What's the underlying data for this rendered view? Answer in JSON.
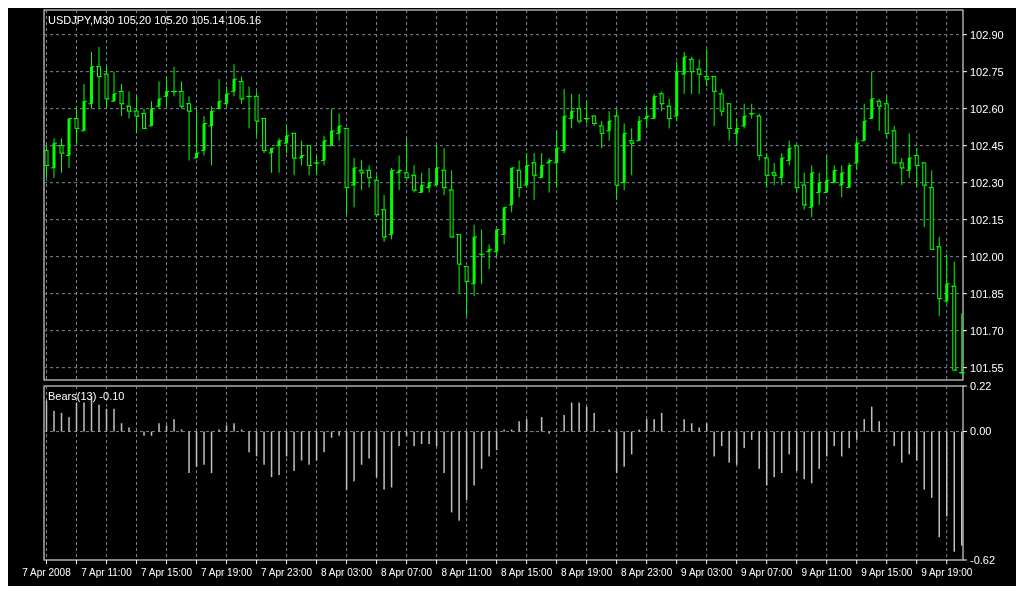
{
  "chart_data": [
    {
      "type": "candlestick",
      "title": "USDJPY,M30  105.20 105.20 105.14 105.16",
      "color": "#00ff00",
      "grid": true,
      "tick_labels": "y",
      "x": [
        "2008-04-07T07:00",
        "2008-04-07T07:30",
        "2008-04-07T08:00",
        "2008-04-07T08:30",
        "2008-04-07T09:00",
        "2008-04-07T09:30",
        "2008-04-07T10:00",
        "2008-04-07T10:30",
        "2008-04-07T11:00",
        "2008-04-07T11:30",
        "2008-04-07T12:00",
        "2008-04-07T12:30",
        "2008-04-07T13:00",
        "2008-04-07T13:30",
        "2008-04-07T14:00",
        "2008-04-07T14:30",
        "2008-04-07T15:00",
        "2008-04-07T15:30",
        "2008-04-07T16:00",
        "2008-04-07T16:30",
        "2008-04-07T17:00",
        "2008-04-07T17:30",
        "2008-04-07T18:00",
        "2008-04-07T18:30",
        "2008-04-07T19:00",
        "2008-04-07T19:30",
        "2008-04-07T20:00",
        "2008-04-07T20:30",
        "2008-04-07T21:00",
        "2008-04-07T21:30",
        "2008-04-07T22:00",
        "2008-04-07T22:30",
        "2008-04-07T23:00",
        "2008-04-07T23:30",
        "2008-04-08T00:00",
        "2008-04-08T00:30",
        "2008-04-08T01:00",
        "2008-04-08T01:30",
        "2008-04-08T02:00",
        "2008-04-08T02:30",
        "2008-04-08T03:00",
        "2008-04-08T03:30",
        "2008-04-08T04:00",
        "2008-04-08T04:30",
        "2008-04-08T05:00",
        "2008-04-08T05:30",
        "2008-04-08T06:00",
        "2008-04-08T06:30",
        "2008-04-08T07:00",
        "2008-04-08T07:30",
        "2008-04-08T08:00",
        "2008-04-08T08:30",
        "2008-04-08T09:00",
        "2008-04-08T09:30",
        "2008-04-08T10:00",
        "2008-04-08T10:30",
        "2008-04-08T11:00",
        "2008-04-08T11:30",
        "2008-04-08T12:00",
        "2008-04-08T12:30",
        "2008-04-08T13:00",
        "2008-04-08T13:30",
        "2008-04-08T14:00",
        "2008-04-08T14:30",
        "2008-04-08T15:00",
        "2008-04-08T15:30",
        "2008-04-08T16:00",
        "2008-04-08T16:30",
        "2008-04-08T17:00",
        "2008-04-08T17:30",
        "2008-04-08T18:00",
        "2008-04-08T18:30",
        "2008-04-08T19:00",
        "2008-04-08T19:30",
        "2008-04-08T20:00",
        "2008-04-08T20:30",
        "2008-04-08T21:00",
        "2008-04-08T21:30",
        "2008-04-08T22:00",
        "2008-04-08T22:30",
        "2008-04-08T23:00",
        "2008-04-08T23:30",
        "2008-04-09T00:00",
        "2008-04-09T00:30",
        "2008-04-09T01:00",
        "2008-04-09T01:30",
        "2008-04-09T02:00",
        "2008-04-09T02:30",
        "2008-04-09T03:00",
        "2008-04-09T03:30",
        "2008-04-09T04:00",
        "2008-04-09T04:30",
        "2008-04-09T05:00",
        "2008-04-09T05:30",
        "2008-04-09T06:00",
        "2008-04-09T06:30",
        "2008-04-09T07:00",
        "2008-04-09T07:30",
        "2008-04-09T08:00",
        "2008-04-09T08:30",
        "2008-04-09T09:00",
        "2008-04-09T09:30",
        "2008-04-09T10:00",
        "2008-04-09T10:30",
        "2008-04-09T11:00",
        "2008-04-09T11:30",
        "2008-04-09T12:00",
        "2008-04-09T12:30",
        "2008-04-09T13:00",
        "2008-04-09T13:30",
        "2008-04-09T14:00",
        "2008-04-09T14:30",
        "2008-04-09T15:00",
        "2008-04-09T15:30",
        "2008-04-09T16:00",
        "2008-04-09T16:30",
        "2008-04-09T17:00",
        "2008-04-09T17:30",
        "2008-04-09T18:00",
        "2008-04-09T18:30",
        "2008-04-09T19:00",
        "2008-04-09T19:30",
        "2008-04-09T20:00"
      ],
      "ohlc": [
        [
          102.43,
          102.45,
          102.32,
          102.37
        ],
        [
          102.36,
          102.48,
          102.32,
          102.46
        ],
        [
          102.45,
          102.48,
          102.34,
          102.42
        ],
        [
          102.41,
          102.56,
          102.36,
          102.56
        ],
        [
          102.56,
          102.61,
          102.46,
          102.52
        ],
        [
          102.51,
          102.7,
          102.51,
          102.63
        ],
        [
          102.62,
          102.83,
          102.6,
          102.77
        ],
        [
          102.77,
          102.85,
          102.6,
          102.73
        ],
        [
          102.74,
          102.77,
          102.6,
          102.64
        ],
        [
          102.63,
          102.75,
          102.63,
          102.66
        ],
        [
          102.67,
          102.7,
          102.57,
          102.62
        ],
        [
          102.61,
          102.67,
          102.56,
          102.59
        ],
        [
          102.59,
          102.65,
          102.5,
          102.57
        ],
        [
          102.58,
          102.6,
          102.52,
          102.52
        ],
        [
          102.53,
          102.63,
          102.53,
          102.6
        ],
        [
          102.61,
          102.71,
          102.6,
          102.64
        ],
        [
          102.65,
          102.73,
          102.61,
          102.67
        ],
        [
          102.67,
          102.77,
          102.65,
          102.67
        ],
        [
          102.67,
          102.71,
          102.6,
          102.61
        ],
        [
          102.62,
          102.65,
          102.39,
          102.59
        ],
        [
          102.4,
          102.6,
          102.4,
          102.42
        ],
        [
          102.43,
          102.57,
          102.41,
          102.54
        ],
        [
          102.53,
          102.61,
          102.37,
          102.59
        ],
        [
          102.6,
          102.72,
          102.6,
          102.63
        ],
        [
          102.62,
          102.69,
          102.61,
          102.66
        ],
        [
          102.67,
          102.78,
          102.65,
          102.72
        ],
        [
          102.71,
          102.73,
          102.62,
          102.64
        ],
        [
          102.65,
          102.69,
          102.52,
          102.65
        ],
        [
          102.65,
          102.67,
          102.49,
          102.55
        ],
        [
          102.56,
          102.56,
          102.42,
          102.43
        ],
        [
          102.42,
          102.44,
          102.34,
          102.44
        ],
        [
          102.45,
          102.48,
          102.34,
          102.47
        ],
        [
          102.46,
          102.53,
          102.42,
          102.49
        ],
        [
          102.5,
          102.5,
          102.33,
          102.4
        ],
        [
          102.4,
          102.47,
          102.37,
          102.41
        ],
        [
          102.45,
          102.45,
          102.33,
          102.37
        ],
        [
          102.38,
          102.41,
          102.33,
          102.38
        ],
        [
          102.39,
          102.49,
          102.37,
          102.47
        ],
        [
          102.45,
          102.6,
          102.45,
          102.51
        ],
        [
          102.5,
          102.58,
          102.47,
          102.53
        ],
        [
          102.52,
          102.52,
          102.17,
          102.28
        ],
        [
          102.29,
          102.4,
          102.2,
          102.36
        ],
        [
          102.35,
          102.39,
          102.27,
          102.34
        ],
        [
          102.35,
          102.37,
          102.28,
          102.32
        ],
        [
          102.31,
          102.33,
          102.16,
          102.17
        ],
        [
          102.19,
          102.25,
          102.06,
          102.08
        ],
        [
          102.09,
          102.36,
          102.07,
          102.35
        ],
        [
          102.34,
          102.41,
          102.27,
          102.35
        ],
        [
          102.34,
          102.48,
          102.32,
          102.32
        ],
        [
          102.33,
          102.37,
          102.26,
          102.27
        ],
        [
          102.26,
          102.34,
          102.26,
          102.29
        ],
        [
          102.28,
          102.36,
          102.26,
          102.3
        ],
        [
          102.29,
          102.45,
          102.29,
          102.36
        ],
        [
          102.35,
          102.44,
          102.25,
          102.28
        ],
        [
          102.27,
          102.35,
          102.08,
          102.08
        ],
        [
          102.09,
          102.09,
          101.85,
          101.97
        ],
        [
          101.96,
          101.96,
          101.76,
          101.9
        ],
        [
          101.89,
          102.13,
          101.84,
          102.08
        ],
        [
          102.01,
          102.11,
          101.89,
          102.01
        ],
        [
          102.02,
          102.05,
          101.95,
          102.03
        ],
        [
          102.02,
          102.11,
          102.0,
          102.11
        ],
        [
          102.09,
          102.2,
          102.05,
          102.2
        ],
        [
          102.21,
          102.36,
          102.18,
          102.36
        ],
        [
          102.35,
          102.39,
          102.24,
          102.28
        ],
        [
          102.29,
          102.42,
          102.28,
          102.37
        ],
        [
          102.38,
          102.42,
          102.23,
          102.33
        ],
        [
          102.32,
          102.42,
          102.32,
          102.37
        ],
        [
          102.38,
          102.4,
          102.26,
          102.39
        ],
        [
          102.38,
          102.51,
          102.28,
          102.44
        ],
        [
          102.43,
          102.68,
          102.42,
          102.57
        ],
        [
          102.56,
          102.66,
          102.52,
          102.59
        ],
        [
          102.6,
          102.66,
          102.54,
          102.55
        ],
        [
          102.56,
          102.63,
          102.54,
          102.56
        ],
        [
          102.57,
          102.57,
          102.53,
          102.54
        ],
        [
          102.53,
          102.55,
          102.44,
          102.5
        ],
        [
          102.51,
          102.59,
          102.47,
          102.55
        ],
        [
          102.57,
          102.6,
          102.23,
          102.29
        ],
        [
          102.3,
          102.54,
          102.27,
          102.5
        ],
        [
          102.47,
          102.52,
          102.33,
          102.46
        ],
        [
          102.47,
          102.57,
          102.47,
          102.55
        ],
        [
          102.56,
          102.61,
          102.52,
          102.57
        ],
        [
          102.56,
          102.66,
          102.56,
          102.65
        ],
        [
          102.66,
          102.67,
          102.59,
          102.62
        ],
        [
          102.61,
          102.64,
          102.52,
          102.56
        ],
        [
          102.57,
          102.79,
          102.55,
          102.75
        ],
        [
          102.74,
          102.83,
          102.66,
          102.81
        ],
        [
          102.8,
          102.81,
          102.66,
          102.75
        ],
        [
          102.76,
          102.8,
          102.66,
          102.74
        ],
        [
          102.73,
          102.84,
          102.69,
          102.72
        ],
        [
          102.73,
          102.73,
          102.53,
          102.67
        ],
        [
          102.66,
          102.68,
          102.57,
          102.59
        ],
        [
          102.62,
          102.62,
          102.47,
          102.52
        ],
        [
          102.5,
          102.56,
          102.45,
          102.52
        ],
        [
          102.53,
          102.62,
          102.52,
          102.57
        ],
        [
          102.58,
          102.62,
          102.56,
          102.58
        ],
        [
          102.57,
          102.58,
          102.39,
          102.41
        ],
        [
          102.4,
          102.42,
          102.28,
          102.33
        ],
        [
          102.34,
          102.38,
          102.29,
          102.33
        ],
        [
          102.32,
          102.42,
          102.29,
          102.4
        ],
        [
          102.39,
          102.47,
          102.37,
          102.44
        ],
        [
          102.45,
          102.45,
          102.26,
          102.28
        ],
        [
          102.29,
          102.34,
          102.19,
          102.21
        ],
        [
          102.2,
          102.37,
          102.16,
          102.34
        ],
        [
          102.26,
          102.34,
          102.21,
          102.3
        ],
        [
          102.26,
          102.41,
          102.26,
          102.31
        ],
        [
          102.3,
          102.37,
          102.3,
          102.35
        ],
        [
          102.29,
          102.37,
          102.24,
          102.34
        ],
        [
          102.28,
          102.38,
          102.28,
          102.37
        ],
        [
          102.38,
          102.48,
          102.35,
          102.46
        ],
        [
          102.47,
          102.62,
          102.47,
          102.55
        ],
        [
          102.56,
          102.75,
          102.56,
          102.64
        ],
        [
          102.63,
          102.64,
          102.51,
          102.61
        ],
        [
          102.62,
          102.65,
          102.48,
          102.5
        ],
        [
          102.51,
          102.53,
          102.38,
          102.38
        ],
        [
          102.38,
          102.4,
          102.29,
          102.36
        ],
        [
          102.35,
          102.5,
          102.32,
          102.4
        ],
        [
          102.41,
          102.44,
          102.28,
          102.37
        ],
        [
          102.38,
          102.38,
          102.12,
          102.29
        ],
        [
          102.28,
          102.35,
          102.03,
          102.03
        ],
        [
          102.04,
          102.08,
          101.76,
          101.83
        ],
        [
          101.82,
          102.01,
          101.81,
          101.89
        ],
        [
          101.88,
          101.98,
          101.54,
          101.54
        ],
        [
          101.53,
          101.77,
          101.53,
          101.53
        ]
      ],
      "xlim": [
        "2008-04-07T06:50",
        "2008-04-09T20:05"
      ],
      "xticks": [
        {
          "value": "2008-04-07T07:00",
          "label": null
        },
        {
          "value": "2008-04-07T09:00",
          "label": null
        },
        {
          "value": "2008-04-07T11:00",
          "label": null
        },
        {
          "value": "2008-04-07T13:00",
          "label": null
        },
        {
          "value": "2008-04-07T15:00",
          "label": null
        },
        {
          "value": "2008-04-07T17:00",
          "label": null
        },
        {
          "value": "2008-04-07T19:00",
          "label": null
        },
        {
          "value": "2008-04-07T21:00",
          "label": null
        },
        {
          "value": "2008-04-07T23:00",
          "label": null
        },
        {
          "value": "2008-04-08T01:00",
          "label": null
        },
        {
          "value": "2008-04-08T03:00",
          "label": null
        },
        {
          "value": "2008-04-08T05:00",
          "label": null
        },
        {
          "value": "2008-04-08T07:00",
          "label": null
        },
        {
          "value": "2008-04-08T09:00",
          "label": null
        },
        {
          "value": "2008-04-08T11:00",
          "label": null
        },
        {
          "value": "2008-04-08T13:00",
          "label": null
        },
        {
          "value": "2008-04-08T15:00",
          "label": null
        },
        {
          "value": "2008-04-08T17:00",
          "label": null
        },
        {
          "value": "2008-04-08T19:00",
          "label": null
        },
        {
          "value": "2008-04-08T21:00",
          "label": null
        },
        {
          "value": "2008-04-08T23:00",
          "label": null
        },
        {
          "value": "2008-04-09T01:00",
          "label": null
        },
        {
          "value": "2008-04-09T03:00",
          "label": null
        },
        {
          "value": "2008-04-09T05:00",
          "label": null
        },
        {
          "value": "2008-04-09T07:00",
          "label": null
        },
        {
          "value": "2008-04-09T09:00",
          "label": null
        },
        {
          "value": "2008-04-09T11:00",
          "label": null
        },
        {
          "value": "2008-04-09T13:00",
          "label": null
        },
        {
          "value": "2008-04-09T15:00",
          "label": null
        },
        {
          "value": "2008-04-09T17:00",
          "label": null
        },
        {
          "value": "2008-04-09T19:00",
          "label": null
        }
      ],
      "ylim": [
        101.5,
        103.0
      ],
      "yticks": [
        {
          "value": 101.55,
          "label": "101.55"
        },
        {
          "value": 101.7,
          "label": "101.70"
        },
        {
          "value": 101.85,
          "label": "101.85"
        },
        {
          "value": 102.0,
          "label": "102.00"
        },
        {
          "value": 102.15,
          "label": "102.15"
        },
        {
          "value": 102.3,
          "label": "102.30"
        },
        {
          "value": 102.45,
          "label": "102.45"
        },
        {
          "value": 102.6,
          "label": "102.60"
        },
        {
          "value": 102.75,
          "label": "102.75"
        },
        {
          "value": 102.9,
          "label": "102.90"
        }
      ]
    },
    {
      "type": "bar",
      "title": "Bears(13) -0.10",
      "color": "#c0c0c0",
      "grid": true,
      "x": [
        "2008-04-07T07:00",
        "2008-04-07T07:30",
        "2008-04-07T08:00",
        "2008-04-07T08:30",
        "2008-04-07T09:00",
        "2008-04-07T09:30",
        "2008-04-07T10:00",
        "2008-04-07T10:30",
        "2008-04-07T11:00",
        "2008-04-07T11:30",
        "2008-04-07T12:00",
        "2008-04-07T12:30",
        "2008-04-07T13:00",
        "2008-04-07T13:30",
        "2008-04-07T14:00",
        "2008-04-07T14:30",
        "2008-04-07T15:00",
        "2008-04-07T15:30",
        "2008-04-07T16:00",
        "2008-04-07T16:30",
        "2008-04-07T17:00",
        "2008-04-07T17:30",
        "2008-04-07T18:00",
        "2008-04-07T18:30",
        "2008-04-07T19:00",
        "2008-04-07T19:30",
        "2008-04-07T20:00",
        "2008-04-07T20:30",
        "2008-04-07T21:00",
        "2008-04-07T21:30",
        "2008-04-07T22:00",
        "2008-04-07T22:30",
        "2008-04-07T23:00",
        "2008-04-07T23:30",
        "2008-04-08T00:00",
        "2008-04-08T00:30",
        "2008-04-08T01:00",
        "2008-04-08T01:30",
        "2008-04-08T02:00",
        "2008-04-08T02:30",
        "2008-04-08T03:00",
        "2008-04-08T03:30",
        "2008-04-08T04:00",
        "2008-04-08T04:30",
        "2008-04-08T05:00",
        "2008-04-08T05:30",
        "2008-04-08T06:00",
        "2008-04-08T06:30",
        "2008-04-08T07:00",
        "2008-04-08T07:30",
        "2008-04-08T08:00",
        "2008-04-08T08:30",
        "2008-04-08T09:00",
        "2008-04-08T09:30",
        "2008-04-08T10:00",
        "2008-04-08T10:30",
        "2008-04-08T11:00",
        "2008-04-08T11:30",
        "2008-04-08T12:00",
        "2008-04-08T12:30",
        "2008-04-08T13:00",
        "2008-04-08T13:30",
        "2008-04-08T14:00",
        "2008-04-08T14:30",
        "2008-04-08T15:00",
        "2008-04-08T15:30",
        "2008-04-08T16:00",
        "2008-04-08T16:30",
        "2008-04-08T17:00",
        "2008-04-08T17:30",
        "2008-04-08T18:00",
        "2008-04-08T18:30",
        "2008-04-08T19:00",
        "2008-04-08T19:30",
        "2008-04-08T20:00",
        "2008-04-08T20:30",
        "2008-04-08T21:00",
        "2008-04-08T21:30",
        "2008-04-08T22:00",
        "2008-04-08T22:30",
        "2008-04-08T23:00",
        "2008-04-08T23:30",
        "2008-04-09T00:00",
        "2008-04-09T00:30",
        "2008-04-09T01:00",
        "2008-04-09T01:30",
        "2008-04-09T02:00",
        "2008-04-09T02:30",
        "2008-04-09T03:00",
        "2008-04-09T03:30",
        "2008-04-09T04:00",
        "2008-04-09T04:30",
        "2008-04-09T05:00",
        "2008-04-09T05:30",
        "2008-04-09T06:00",
        "2008-04-09T06:30",
        "2008-04-09T07:00",
        "2008-04-09T07:30",
        "2008-04-09T08:00",
        "2008-04-09T08:30",
        "2008-04-09T09:00",
        "2008-04-09T09:30",
        "2008-04-09T10:00",
        "2008-04-09T10:30",
        "2008-04-09T11:00",
        "2008-04-09T11:30",
        "2008-04-09T12:00",
        "2008-04-09T12:30",
        "2008-04-09T13:00",
        "2008-04-09T13:30",
        "2008-04-09T14:00",
        "2008-04-09T14:30",
        "2008-04-09T15:00",
        "2008-04-09T15:30",
        "2008-04-09T16:00",
        "2008-04-09T16:30",
        "2008-04-09T17:00",
        "2008-04-09T17:30",
        "2008-04-09T18:00",
        "2008-04-09T18:30",
        "2008-04-09T19:00",
        "2008-04-09T19:30",
        "2008-04-09T20:00"
      ],
      "values": [
        0.15,
        0.1,
        0.09,
        0.07,
        0.14,
        0.14,
        0.17,
        0.13,
        0.11,
        0.11,
        0.04,
        0.02,
        0,
        -0.02,
        -0.02,
        0.04,
        0.03,
        0.06,
        0.01,
        -0.2,
        -0.17,
        -0.16,
        -0.2,
        0.01,
        0.03,
        0.04,
        0.01,
        -0.1,
        -0.12,
        -0.16,
        -0.22,
        -0.21,
        -0.12,
        -0.19,
        -0.14,
        -0.16,
        -0.14,
        -0.1,
        -0.03,
        -0.02,
        -0.28,
        -0.24,
        -0.16,
        -0.13,
        -0.22,
        -0.28,
        -0.27,
        -0.07,
        -0.02,
        -0.07,
        -0.06,
        -0.06,
        -0.07,
        -0.2,
        -0.39,
        -0.43,
        -0.33,
        -0.26,
        -0.18,
        -0.12,
        -0.09,
        0.01,
        0.01,
        0.05,
        0.06,
        0,
        0.07,
        -0.01,
        0,
        0.08,
        0.14,
        0.14,
        0.12,
        0.09,
        0,
        0.01,
        -0.2,
        -0.17,
        -0.11,
        0.01,
        0.06,
        0.06,
        0.09,
        0,
        0,
        0.06,
        0.04,
        0.02,
        0.04,
        -0.12,
        -0.07,
        -0.15,
        -0.16,
        -0.08,
        -0.04,
        -0.18,
        -0.26,
        -0.22,
        -0.2,
        -0.11,
        -0.19,
        -0.23,
        -0.25,
        -0.18,
        -0.12,
        -0.07,
        -0.12,
        -0.08,
        -0.04,
        0.06,
        0.12,
        0.05,
        0,
        -0.07,
        -0.15,
        -0.11,
        -0.14,
        -0.28,
        -0.32,
        -0.51,
        -0.41,
        -0.58,
        -0.55
      ],
      "xlim": [
        "2008-04-07T06:50",
        "2008-04-09T20:05"
      ],
      "xticks": [
        {
          "value": "2008-04-07T07:00",
          "label": "7 Apr 2008"
        },
        {
          "value": "2008-04-07T09:00",
          "label": null
        },
        {
          "value": "2008-04-07T11:00",
          "label": "7 Apr 11:00"
        },
        {
          "value": "2008-04-07T13:00",
          "label": null
        },
        {
          "value": "2008-04-07T15:00",
          "label": "7 Apr 15:00"
        },
        {
          "value": "2008-04-07T17:00",
          "label": null
        },
        {
          "value": "2008-04-07T19:00",
          "label": "7 Apr 19:00"
        },
        {
          "value": "2008-04-07T21:00",
          "label": null
        },
        {
          "value": "2008-04-07T23:00",
          "label": "7 Apr 23:00"
        },
        {
          "value": "2008-04-08T01:00",
          "label": null
        },
        {
          "value": "2008-04-08T03:00",
          "label": "8 Apr 03:00"
        },
        {
          "value": "2008-04-08T05:00",
          "label": null
        },
        {
          "value": "2008-04-08T07:00",
          "label": "8 Apr 07:00"
        },
        {
          "value": "2008-04-08T09:00",
          "label": null
        },
        {
          "value": "2008-04-08T11:00",
          "label": "8 Apr 11:00"
        },
        {
          "value": "2008-04-08T13:00",
          "label": null
        },
        {
          "value": "2008-04-08T15:00",
          "label": "8 Apr 15:00"
        },
        {
          "value": "2008-04-08T17:00",
          "label": null
        },
        {
          "value": "2008-04-08T19:00",
          "label": "8 Apr 19:00"
        },
        {
          "value": "2008-04-08T21:00",
          "label": null
        },
        {
          "value": "2008-04-08T23:00",
          "label": "8 Apr 23:00"
        },
        {
          "value": "2008-04-09T01:00",
          "label": null
        },
        {
          "value": "2008-04-09T03:00",
          "label": "9 Apr 03:00"
        },
        {
          "value": "2008-04-09T05:00",
          "label": null
        },
        {
          "value": "2008-04-09T07:00",
          "label": "9 Apr 07:00"
        },
        {
          "value": "2008-04-09T09:00",
          "label": null
        },
        {
          "value": "2008-04-09T11:00",
          "label": "9 Apr 11:00"
        },
        {
          "value": "2008-04-09T13:00",
          "label": null
        },
        {
          "value": "2008-04-09T15:00",
          "label": "9 Apr 15:00"
        },
        {
          "value": "2008-04-09T17:00",
          "label": null
        },
        {
          "value": "2008-04-09T19:00",
          "label": "9 Apr 19:00"
        }
      ],
      "ylim": [
        -0.62,
        0.22
      ],
      "yticks": [
        0.22,
        {
          "value": 0,
          "label": "0.00"
        },
        -0.62
      ]
    }
  ]
}
